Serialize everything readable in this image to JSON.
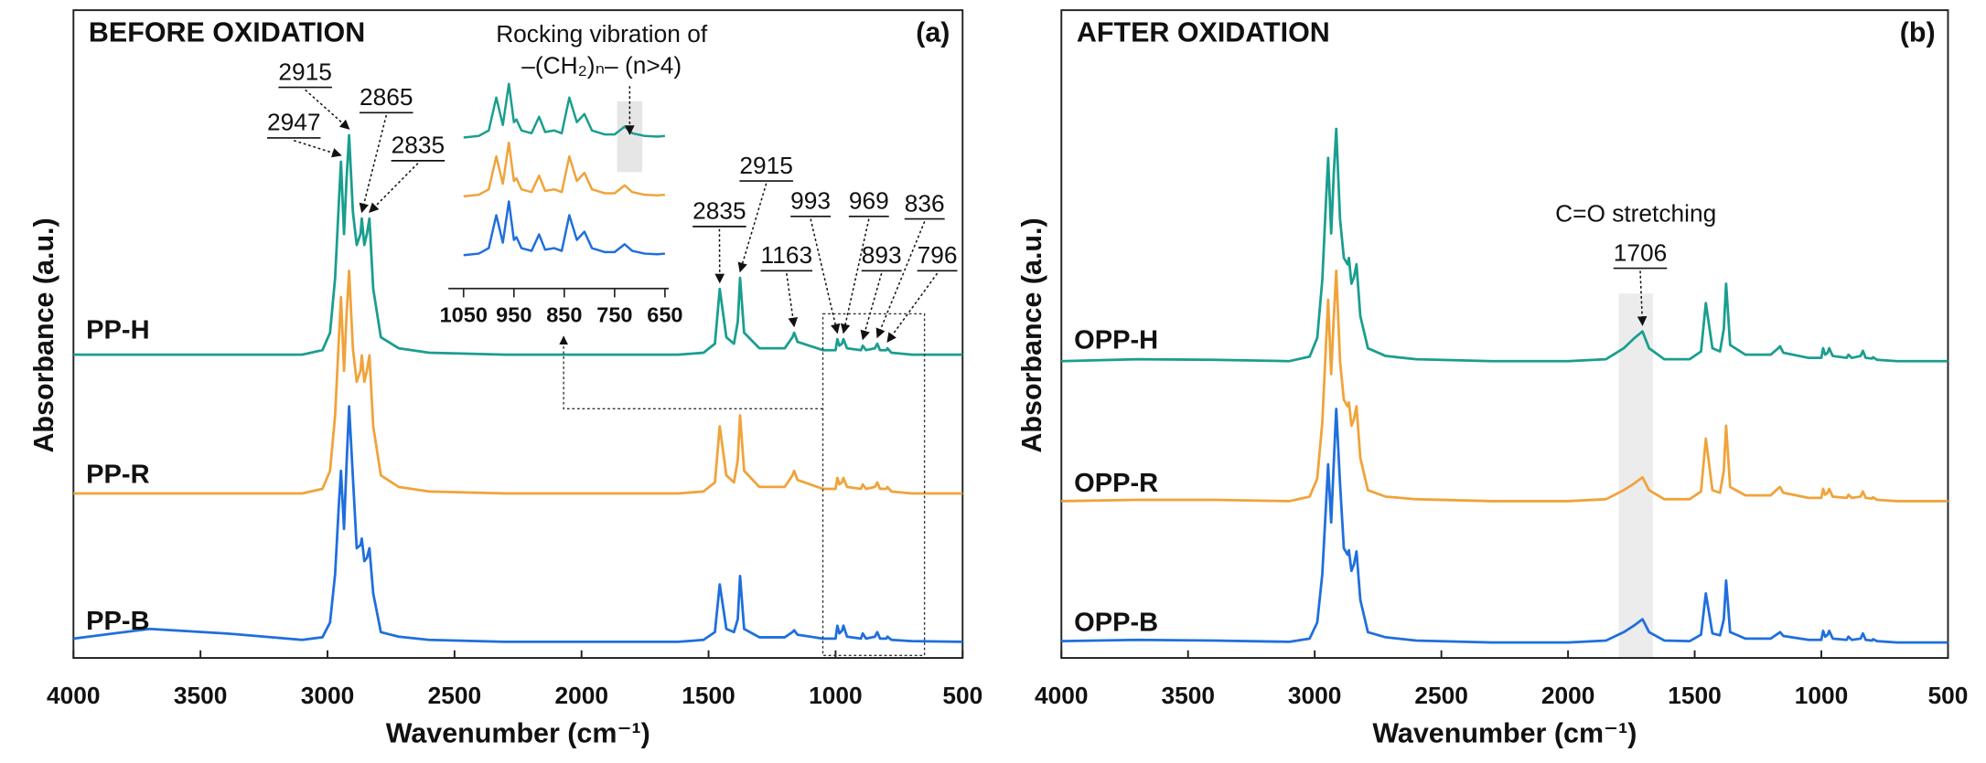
{
  "chart_data": [
    {
      "type": "line",
      "title": "BEFORE OXIDATION",
      "panel_label": "(a)",
      "x_label": "Wavenumber (cm⁻¹)",
      "y_label": "Absorbance (a.u.)",
      "xlim": [
        4000,
        500
      ],
      "ylim": [
        0,
        100
      ],
      "xticks": [
        4000,
        3500,
        3000,
        2500,
        2000,
        1500,
        1000,
        500
      ],
      "x": [
        4000,
        3700,
        3400,
        3100,
        3020,
        2990,
        2970,
        2955,
        2947,
        2935,
        2925,
        2915,
        2900,
        2885,
        2870,
        2865,
        2855,
        2845,
        2835,
        2820,
        2790,
        2720,
        2600,
        2300,
        2000,
        1850,
        1780,
        1740,
        1706,
        1680,
        1620,
        1520,
        1475,
        1456,
        1430,
        1400,
        1385,
        1376,
        1360,
        1300,
        1200,
        1170,
        1163,
        1150,
        1050,
        1000,
        993,
        985,
        975,
        969,
        955,
        900,
        893,
        880,
        845,
        836,
        825,
        800,
        796,
        780,
        700,
        500
      ],
      "series": [
        {
          "name": "PP-H",
          "color": "#1a9e8f",
          "values": [
            47,
            47,
            47,
            47,
            47.7,
            50.4,
            58.9,
            70.8,
            76.9,
            65.7,
            74.2,
            81,
            69.1,
            64,
            65.7,
            68.1,
            64,
            65.7,
            68.1,
            57.2,
            49.7,
            48,
            47.3,
            47,
            47,
            47,
            47,
            47,
            47,
            47,
            47,
            47.3,
            48.7,
            57.2,
            49.7,
            48.7,
            52.1,
            58.9,
            50.4,
            48,
            48,
            49.7,
            50.4,
            49,
            47.7,
            47.7,
            49.4,
            48.4,
            48.7,
            49.4,
            48,
            47.7,
            48.4,
            47.7,
            48,
            48.7,
            47.7,
            47.7,
            48,
            47.3,
            47,
            47
          ]
        },
        {
          "name": "PP-R",
          "color": "#f0a33a",
          "values": [
            25.5,
            25.5,
            25.5,
            25.5,
            26.2,
            29,
            37.6,
            49.7,
            55.9,
            44.5,
            53.1,
            60,
            47.9,
            42.8,
            44.5,
            46.9,
            42.8,
            44.5,
            46.9,
            35.9,
            28.3,
            26.5,
            25.8,
            25.5,
            25.5,
            25.5,
            25.5,
            25.5,
            25.5,
            25.5,
            25.5,
            25.8,
            27.2,
            35.9,
            28.3,
            27.2,
            30.7,
            37.6,
            29,
            26.5,
            26.5,
            28.3,
            29,
            27.6,
            26.2,
            26.2,
            27.9,
            26.9,
            27.2,
            27.9,
            26.5,
            26.2,
            26.9,
            26.2,
            26.5,
            27.2,
            26.2,
            26.2,
            26.5,
            25.8,
            25.5,
            25.5
          ]
        },
        {
          "name": "PP-B",
          "color": "#1f6fdc",
          "values": [
            3,
            4.5,
            3.8,
            2.8,
            3.2,
            5.5,
            13,
            24,
            29,
            20,
            30,
            39,
            28,
            17,
            17.5,
            18.5,
            15,
            15.5,
            17,
            10,
            4,
            3.3,
            2.8,
            2.5,
            2.5,
            2.5,
            2.5,
            2.5,
            2.5,
            2.5,
            2.5,
            2.8,
            4,
            11.4,
            4.5,
            4,
            6,
            12.7,
            4.5,
            3.2,
            3.2,
            4,
            4.3,
            3.6,
            3,
            3,
            5,
            3.8,
            4.2,
            5,
            3.3,
            3,
            3.8,
            3,
            3.3,
            4,
            3,
            3,
            3.3,
            2.8,
            2.6,
            2.5
          ]
        }
      ],
      "annotations": [
        {
          "text": "2947",
          "at": 2947
        },
        {
          "text": "2915",
          "at": 2915
        },
        {
          "text": "2865",
          "at": 2865
        },
        {
          "text": "2835",
          "at": 2835
        },
        {
          "text": "2835",
          "at": 1456
        },
        {
          "text": "2915",
          "at": 1376
        },
        {
          "text": "1163",
          "at": 1163
        },
        {
          "text": "993",
          "at": 993
        },
        {
          "text": "969",
          "at": 969
        },
        {
          "text": "893",
          "at": 893
        },
        {
          "text": "836",
          "at": 836
        },
        {
          "text": "796",
          "at": 796
        }
      ],
      "inset": {
        "type": "line",
        "title_lines": [
          "Rocking vibration of",
          "–(CH₂)ₙ– (n>4)"
        ],
        "xlim": [
          1050,
          650
        ],
        "ylim": [
          0,
          100
        ],
        "xticks": [
          1050,
          950,
          850,
          750,
          650
        ],
        "shade": [
          745,
          695
        ],
        "x": [
          1050,
          1020,
          1000,
          985,
          972,
          960,
          950,
          945,
          935,
          915,
          900,
          888,
          870,
          855,
          840,
          825,
          810,
          795,
          770,
          750,
          730,
          715,
          690,
          665,
          650
        ],
        "series": [
          {
            "color": "#1a9e8f",
            "values": [
              68.6,
              69.4,
              72.2,
              89,
              75,
              96,
              76.4,
              77.8,
              72.2,
              70.8,
              79.2,
              71.4,
              72.2,
              70.8,
              89,
              76.4,
              80.6,
              72.2,
              70.2,
              70.2,
              74.2,
              70.8,
              69.4,
              69.1,
              69.4
            ]
          },
          {
            "color": "#f0a33a",
            "values": [
              38.6,
              39.4,
              42.2,
              59,
              45,
              66,
              46.4,
              47.8,
              42.2,
              40.8,
              49.2,
              41.4,
              42.2,
              40.8,
              59,
              46.4,
              50.6,
              42.2,
              40.2,
              40.2,
              44.2,
              40.8,
              39.4,
              39.1,
              39.4
            ]
          },
          {
            "color": "#1f6fdc",
            "values": [
              8.6,
              9.4,
              12.2,
              29,
              15,
              36,
              16.4,
              17.8,
              12.2,
              10.8,
              19.2,
              11.4,
              12.2,
              10.8,
              29,
              16.4,
              20.6,
              12.2,
              10.2,
              10.2,
              14.2,
              10.8,
              9.4,
              9.1,
              9.4
            ]
          }
        ]
      }
    },
    {
      "type": "line",
      "title": "AFTER OXIDATION",
      "panel_label": "(b)",
      "x_label": "Wavenumber (cm⁻¹)",
      "y_label": "Absorbance (a.u.)",
      "xlim": [
        4000,
        500
      ],
      "ylim": [
        0,
        100
      ],
      "xticks": [
        4000,
        3500,
        3000,
        2500,
        2000,
        1500,
        1000,
        500
      ],
      "x": [
        4000,
        3700,
        3400,
        3100,
        3020,
        2990,
        2970,
        2955,
        2947,
        2935,
        2925,
        2915,
        2900,
        2885,
        2870,
        2865,
        2855,
        2845,
        2835,
        2820,
        2790,
        2720,
        2600,
        2300,
        2000,
        1850,
        1780,
        1740,
        1706,
        1680,
        1620,
        1520,
        1475,
        1456,
        1430,
        1400,
        1385,
        1376,
        1360,
        1300,
        1200,
        1170,
        1163,
        1150,
        1050,
        1000,
        993,
        985,
        975,
        969,
        955,
        900,
        893,
        880,
        845,
        836,
        825,
        800,
        796,
        780,
        700,
        500
      ],
      "series": [
        {
          "name": "OPP-H",
          "color": "#1a9e8f",
          "values": [
            46,
            46.3,
            46.2,
            46,
            46.7,
            49.6,
            58.6,
            71.2,
            77.5,
            65.8,
            74.8,
            82,
            68,
            62,
            61,
            62,
            58,
            59,
            61,
            53,
            48,
            46.8,
            46.3,
            46,
            46,
            46.3,
            48,
            49.5,
            50.6,
            48,
            46.3,
            46.3,
            47.5,
            55,
            48,
            47.5,
            51,
            58,
            48.5,
            47,
            47,
            48,
            48.3,
            47.3,
            46.5,
            46.5,
            48,
            47,
            47.3,
            48,
            46.8,
            46.5,
            47,
            46.5,
            46.8,
            47.6,
            46.5,
            46.4,
            46.6,
            46.2,
            46,
            46
          ]
        },
        {
          "name": "OPP-R",
          "color": "#f0a33a",
          "values": [
            24.3,
            24.5,
            24.5,
            24.3,
            25,
            27.8,
            36.5,
            49,
            55.5,
            44,
            52.5,
            60,
            46,
            40,
            39,
            39.6,
            36,
            37,
            39,
            31,
            26,
            25,
            24.6,
            24.3,
            24.3,
            24.6,
            26,
            27,
            28,
            26,
            24.6,
            24.6,
            25.8,
            34,
            26,
            25.6,
            29,
            36,
            26.5,
            25.2,
            25.2,
            26.3,
            26.5,
            25.6,
            24.8,
            24.8,
            26.2,
            25.3,
            25.6,
            26.2,
            25,
            24.8,
            25.3,
            24.8,
            25,
            25.8,
            24.8,
            24.7,
            24.9,
            24.5,
            24.3,
            24.3
          ]
        },
        {
          "name": "OPP-B",
          "color": "#1f6fdc",
          "values": [
            2.6,
            2.8,
            2.7,
            2.5,
            3,
            5.5,
            13,
            24,
            30,
            21,
            30,
            38.6,
            27,
            17,
            16,
            16.7,
            13.5,
            14.5,
            16.5,
            9,
            4,
            3.2,
            2.7,
            2.4,
            2.4,
            2.7,
            4,
            5,
            6,
            4,
            2.7,
            2.6,
            3.6,
            10,
            3.8,
            3.5,
            6,
            12,
            4,
            3,
            3,
            3.8,
            4,
            3.4,
            2.8,
            2.8,
            4.2,
            3.3,
            3.6,
            4.2,
            3,
            2.8,
            3.3,
            2.8,
            3,
            3.8,
            2.8,
            2.7,
            2.9,
            2.6,
            2.4,
            2.4
          ]
        }
      ],
      "band_label": "C=O stretching",
      "shade": [
        1800,
        1665
      ],
      "annotations": [
        {
          "text": "1706",
          "at": 1706
        }
      ]
    }
  ]
}
